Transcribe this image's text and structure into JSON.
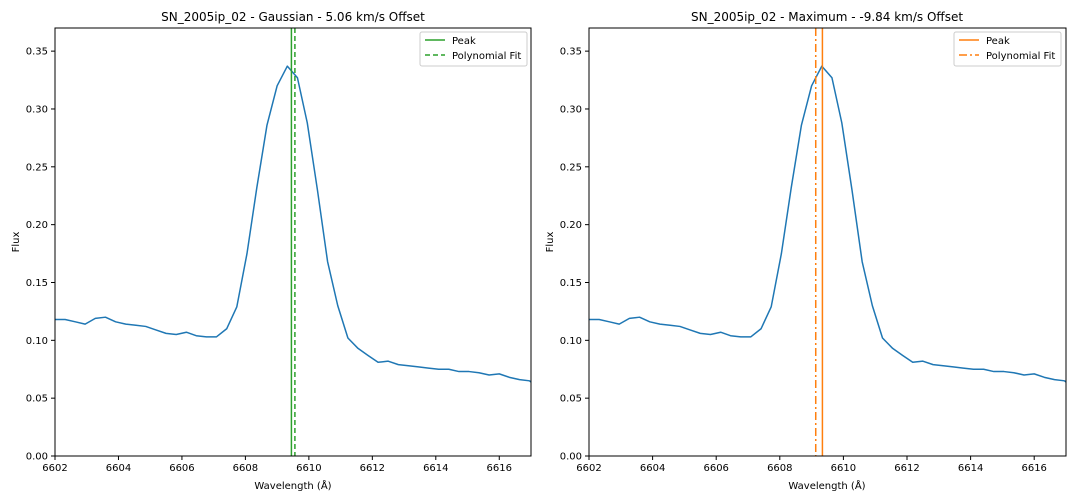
{
  "chart_data": [
    {
      "type": "line",
      "title": "SN_2005ip_02 - Gaussian - 5.06 km/s Offset",
      "xlabel": "Wavelength (Å)",
      "ylabel": "Flux",
      "xlim": [
        6602,
        6617
      ],
      "ylim": [
        0.0,
        0.37
      ],
      "xticks": [
        "6602",
        "6604",
        "6606",
        "6608",
        "6610",
        "6612",
        "6614",
        "6616"
      ],
      "yticks": [
        "0.00",
        "0.05",
        "0.10",
        "0.15",
        "0.20",
        "0.25",
        "0.30",
        "0.35"
      ],
      "legend_position": "top-right",
      "series": [
        {
          "color": "#1f77b4",
          "x": [
            6602.0,
            6602.32,
            6602.64,
            6602.95,
            6603.27,
            6603.59,
            6603.91,
            6604.23,
            6604.55,
            6604.86,
            6605.18,
            6605.5,
            6605.82,
            6606.14,
            6606.45,
            6606.77,
            6607.09,
            6607.41,
            6607.73,
            6608.05,
            6608.36,
            6608.68,
            6609.0,
            6609.32,
            6609.64,
            6609.95,
            6610.27,
            6610.59,
            6610.91,
            6611.23,
            6611.55,
            6611.86,
            6612.18,
            6612.5,
            6612.82,
            6613.14,
            6613.45,
            6613.77,
            6614.09,
            6614.41,
            6614.73,
            6615.05,
            6615.36,
            6615.68,
            6616.0,
            6616.32,
            6616.64,
            6616.95,
            6617.0
          ],
          "y": [
            0.118,
            0.118,
            0.116,
            0.114,
            0.119,
            0.12,
            0.116,
            0.114,
            0.113,
            0.112,
            0.109,
            0.106,
            0.105,
            0.107,
            0.104,
            0.103,
            0.103,
            0.11,
            0.129,
            0.175,
            0.232,
            0.286,
            0.32,
            0.337,
            0.327,
            0.288,
            0.23,
            0.168,
            0.13,
            0.102,
            0.093,
            0.087,
            0.081,
            0.082,
            0.079,
            0.078,
            0.077,
            0.076,
            0.075,
            0.075,
            0.073,
            0.073,
            0.072,
            0.07,
            0.071,
            0.068,
            0.066,
            0.065,
            0.064
          ]
        }
      ],
      "vlines": [
        {
          "label": "Peak",
          "x": 6609.45,
          "color": "#2ca02c",
          "style": "solid"
        },
        {
          "label": "Polynomial Fit",
          "x": 6609.56,
          "color": "#2ca02c",
          "style": "dashed"
        }
      ]
    },
    {
      "type": "line",
      "title": "SN_2005ip_02 - Maximum - -9.84 km/s Offset",
      "xlabel": "Wavelength (Å)",
      "ylabel": "Flux",
      "xlim": [
        6602,
        6617
      ],
      "ylim": [
        0.0,
        0.37
      ],
      "xticks": [
        "6602",
        "6604",
        "6606",
        "6608",
        "6610",
        "6612",
        "6614",
        "6616"
      ],
      "yticks": [
        "0.00",
        "0.05",
        "0.10",
        "0.15",
        "0.20",
        "0.25",
        "0.30",
        "0.35"
      ],
      "legend_position": "top-right",
      "series": [
        {
          "color": "#1f77b4",
          "x": [
            6602.0,
            6602.32,
            6602.64,
            6602.95,
            6603.27,
            6603.59,
            6603.91,
            6604.23,
            6604.55,
            6604.86,
            6605.18,
            6605.5,
            6605.82,
            6606.14,
            6606.45,
            6606.77,
            6607.09,
            6607.41,
            6607.73,
            6608.05,
            6608.36,
            6608.68,
            6609.0,
            6609.32,
            6609.64,
            6609.95,
            6610.27,
            6610.59,
            6610.91,
            6611.23,
            6611.55,
            6611.86,
            6612.18,
            6612.5,
            6612.82,
            6613.14,
            6613.45,
            6613.77,
            6614.09,
            6614.41,
            6614.73,
            6615.05,
            6615.36,
            6615.68,
            6616.0,
            6616.32,
            6616.64,
            6616.95,
            6617.0
          ],
          "y": [
            0.118,
            0.118,
            0.116,
            0.114,
            0.119,
            0.12,
            0.116,
            0.114,
            0.113,
            0.112,
            0.109,
            0.106,
            0.105,
            0.107,
            0.104,
            0.103,
            0.103,
            0.11,
            0.129,
            0.175,
            0.232,
            0.286,
            0.32,
            0.337,
            0.327,
            0.288,
            0.23,
            0.168,
            0.13,
            0.102,
            0.093,
            0.087,
            0.081,
            0.082,
            0.079,
            0.078,
            0.077,
            0.076,
            0.075,
            0.075,
            0.073,
            0.073,
            0.072,
            0.07,
            0.071,
            0.068,
            0.066,
            0.065,
            0.064
          ]
        }
      ],
      "vlines": [
        {
          "label": "Peak",
          "x": 6609.34,
          "color": "#ff7f0e",
          "style": "solid"
        },
        {
          "label": "Polynomial Fit",
          "x": 6609.13,
          "color": "#ff7f0e",
          "style": "dashdot"
        }
      ]
    }
  ]
}
